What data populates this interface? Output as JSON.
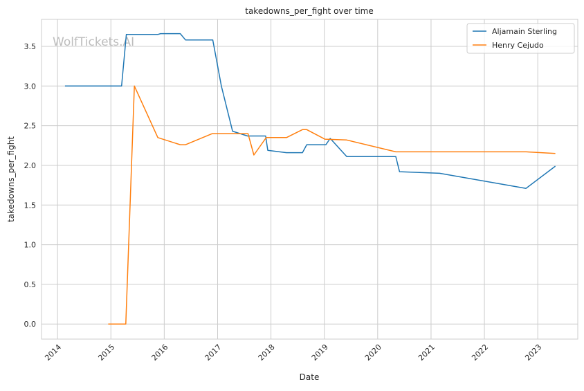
{
  "chart_data": {
    "type": "line",
    "title": "takedowns_per_fight over time",
    "xlabel": "Date",
    "ylabel": "takedowns_per_fight",
    "watermark": "WolfTickets.AI",
    "xlim": [
      2013.7,
      2023.75
    ],
    "ylim": [
      -0.19,
      3.84
    ],
    "xticks": [
      2014,
      2015,
      2016,
      2017,
      2018,
      2019,
      2020,
      2021,
      2022,
      2023
    ],
    "yticks": [
      0.0,
      0.5,
      1.0,
      1.5,
      2.0,
      2.5,
      3.0,
      3.5
    ],
    "grid": true,
    "legend_position": "top-right",
    "series": [
      {
        "name": "Aljamain Sterling",
        "color": "#1f77b4",
        "x": [
          2014.14,
          2015.2,
          2015.29,
          2015.88,
          2015.93,
          2016.3,
          2016.4,
          2016.91,
          2017.07,
          2017.28,
          2017.56,
          2017.9,
          2017.94,
          2018.29,
          2018.59,
          2018.67,
          2019.03,
          2019.11,
          2019.42,
          2020.34,
          2020.41,
          2021.16,
          2022.78,
          2023.33
        ],
        "y": [
          3.0,
          3.0,
          3.65,
          3.65,
          3.66,
          3.66,
          3.58,
          3.58,
          3.0,
          2.43,
          2.37,
          2.37,
          2.19,
          2.16,
          2.16,
          2.26,
          2.26,
          2.34,
          2.11,
          2.11,
          1.92,
          1.9,
          1.71,
          1.99
        ]
      },
      {
        "name": "Henry Cejudo",
        "color": "#ff7f0e",
        "x": [
          2014.95,
          2015.28,
          2015.44,
          2015.88,
          2016.3,
          2016.4,
          2016.9,
          2017.57,
          2017.68,
          2017.91,
          2018.29,
          2018.59,
          2018.67,
          2019.01,
          2019.42,
          2020.34,
          2022.78,
          2023.33
        ],
        "y": [
          0.0,
          0.0,
          3.0,
          2.35,
          2.26,
          2.26,
          2.4,
          2.4,
          2.13,
          2.35,
          2.35,
          2.45,
          2.45,
          2.33,
          2.32,
          2.17,
          2.17,
          2.15
        ]
      }
    ]
  }
}
